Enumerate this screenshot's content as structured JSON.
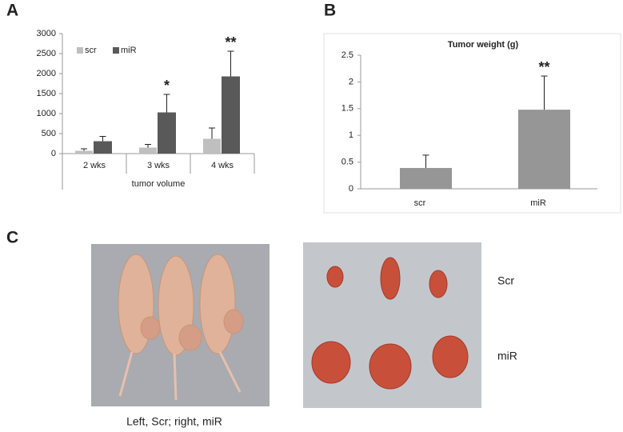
{
  "panels": {
    "a": "A",
    "b": "B",
    "c": "C"
  },
  "chart_data": [
    {
      "type": "bar",
      "categories": [
        "2 wks",
        "3 wks",
        "4 wks"
      ],
      "xlabel": "tumor volume",
      "series": [
        {
          "name": "scr",
          "color": "#bfbfbf",
          "values": [
            70,
            150,
            370
          ],
          "errors": [
            50,
            80,
            270
          ],
          "significance": [
            null,
            null,
            null
          ]
        },
        {
          "name": "miR",
          "color": "#595959",
          "values": [
            310,
            1030,
            1930
          ],
          "errors": [
            120,
            450,
            630
          ],
          "significance": [
            null,
            "*",
            "**"
          ]
        }
      ],
      "ylim": [
        0,
        3000
      ],
      "yticks": [
        0,
        500,
        1000,
        1500,
        2000,
        2500,
        3000
      ],
      "legend": "top-left"
    },
    {
      "type": "bar",
      "title": "Tumor weight (g)",
      "categories": [
        "scr",
        "miR"
      ],
      "series": [
        {
          "name": "weight",
          "color": "#969696",
          "values": [
            0.39,
            1.48
          ],
          "errors": [
            0.24,
            0.63
          ],
          "significance": [
            null,
            "**"
          ]
        }
      ],
      "ylim": [
        0,
        2.5
      ],
      "yticks": [
        0,
        0.5,
        1,
        1.5,
        2,
        2.5
      ]
    }
  ],
  "photos": {
    "caption": "Left, Scr; right, miR",
    "rows": [
      "Scr",
      "miR"
    ]
  }
}
